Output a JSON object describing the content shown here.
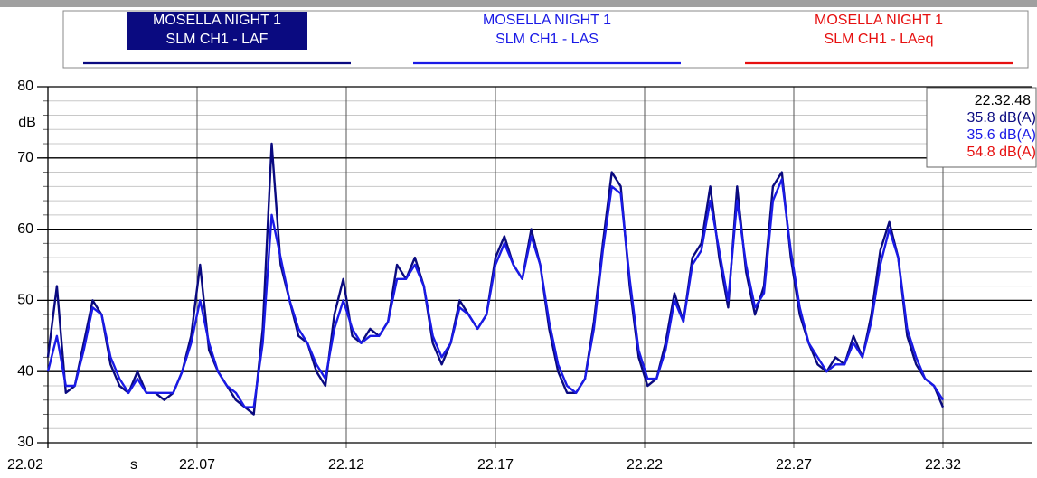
{
  "chart_data": {
    "type": "line",
    "ylabel": "dB",
    "xlabel": "s",
    "xlim": [
      22.02,
      22.35
    ],
    "xticks": [
      22.02,
      22.07,
      22.12,
      22.17,
      22.22,
      22.27,
      22.32
    ],
    "ylim": [
      30,
      80
    ],
    "yticks": [
      30,
      40,
      50,
      60,
      70,
      80
    ],
    "grid": true,
    "legend": [
      {
        "source": "MOSELLA NIGHT 1",
        "name": "SLM CH1 - LAF",
        "color": "#0a0a80",
        "selected": true
      },
      {
        "source": "MOSELLA NIGHT 1",
        "name": "SLM CH1 - LAS",
        "color": "#1a1ae6",
        "selected": false
      },
      {
        "source": "MOSELLA NIGHT 1",
        "name": "SLM CH1 - LAeq",
        "color": "#e61010",
        "selected": false
      }
    ],
    "readout": {
      "time": "22.32.48",
      "values": [
        35.8,
        35.6,
        54.8
      ],
      "value_labels": [
        "35.8 dB(A)",
        "35.6 dB(A)",
        "54.8 dB(A)"
      ],
      "colors": [
        "#0a0a80",
        "#1a1ae6",
        "#e61010"
      ]
    },
    "x": [
      22.02,
      22.023,
      22.026,
      22.029,
      22.032,
      22.035,
      22.038,
      22.041,
      22.044,
      22.047,
      22.05,
      22.053,
      22.056,
      22.059,
      22.062,
      22.065,
      22.068,
      22.071,
      22.074,
      22.077,
      22.08,
      22.083,
      22.086,
      22.089,
      22.092,
      22.095,
      22.098,
      22.101,
      22.104,
      22.107,
      22.11,
      22.113,
      22.116,
      22.119,
      22.122,
      22.125,
      22.128,
      22.131,
      22.134,
      22.137,
      22.14,
      22.143,
      22.146,
      22.149,
      22.152,
      22.155,
      22.158,
      22.161,
      22.164,
      22.167,
      22.17,
      22.173,
      22.176,
      22.179,
      22.182,
      22.185,
      22.188,
      22.191,
      22.194,
      22.197,
      22.2,
      22.203,
      22.206,
      22.209,
      22.212,
      22.215,
      22.218,
      22.221,
      22.224,
      22.227,
      22.23,
      22.233,
      22.236,
      22.239,
      22.242,
      22.245,
      22.248,
      22.251,
      22.254,
      22.257,
      22.26,
      22.263,
      22.266,
      22.269,
      22.272,
      22.275,
      22.278,
      22.281,
      22.284,
      22.287,
      22.29,
      22.293,
      22.296,
      22.299,
      22.302,
      22.305,
      22.308,
      22.311,
      22.314,
      22.317,
      22.32
    ],
    "series": [
      {
        "name": "SLM CH1 - LAF",
        "color": "#0a0a80",
        "values": [
          42,
          52,
          37,
          38,
          44,
          50,
          48,
          41,
          38,
          37,
          40,
          37,
          37,
          36,
          37,
          40,
          45,
          55,
          43,
          40,
          38,
          36,
          35,
          34,
          46,
          72,
          55,
          50,
          45,
          44,
          40,
          38,
          48,
          53,
          45,
          44,
          46,
          45,
          47,
          55,
          53,
          56,
          52,
          44,
          41,
          44,
          50,
          48,
          46,
          48,
          56,
          59,
          55,
          53,
          60,
          55,
          46,
          40,
          37,
          37,
          39,
          47,
          58,
          68,
          66,
          52,
          42,
          38,
          39,
          44,
          51,
          47,
          56,
          58,
          66,
          56,
          49,
          66,
          54,
          48,
          52,
          66,
          68,
          56,
          48,
          44,
          41,
          40,
          42,
          41,
          45,
          42,
          48,
          57,
          61,
          56,
          45,
          41,
          39,
          38,
          35
        ]
      },
      {
        "name": "SLM CH1 - LAS",
        "color": "#1a1ae6",
        "values": [
          40,
          45,
          38,
          38,
          43,
          49,
          48,
          42,
          39,
          37,
          39,
          37,
          37,
          37,
          37,
          40,
          44,
          50,
          44,
          40,
          38,
          37,
          35,
          35,
          44,
          62,
          56,
          50,
          46,
          44,
          41,
          39,
          46,
          50,
          46,
          44,
          45,
          45,
          47,
          53,
          53,
          55,
          52,
          45,
          42,
          44,
          49,
          48,
          46,
          48,
          55,
          58,
          55,
          53,
          59,
          55,
          47,
          41,
          38,
          37,
          39,
          46,
          57,
          66,
          65,
          53,
          43,
          39,
          39,
          43,
          50,
          47,
          55,
          57,
          64,
          57,
          50,
          64,
          55,
          49,
          51,
          64,
          67,
          57,
          49,
          44,
          42,
          40,
          41,
          41,
          44,
          42,
          47,
          55,
          60,
          56,
          46,
          42,
          39,
          38,
          36
        ]
      }
    ]
  }
}
